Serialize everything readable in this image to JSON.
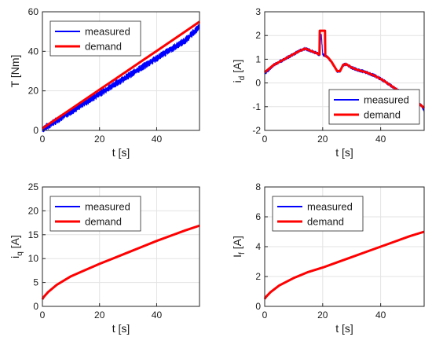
{
  "chart_data": [
    {
      "type": "line",
      "xlabel": "t [s]",
      "ylabel": "T [Nm]",
      "ylabel_sub": "",
      "xlim": [
        0,
        55
      ],
      "ylim": [
        0,
        60
      ],
      "xticks": [
        0,
        20,
        40
      ],
      "yticks": [
        0,
        20,
        40,
        60
      ],
      "grid": true,
      "legend_position": "top-left",
      "series": [
        {
          "name": "measured",
          "color": "#0000ff",
          "noise": 3.5,
          "x": [
            0,
            5,
            10,
            15,
            20,
            25,
            30,
            35,
            40,
            45,
            50,
            55
          ],
          "y": [
            0.5,
            5,
            9.5,
            14,
            18.5,
            23,
            27.5,
            32,
            36.5,
            41,
            45.5,
            52.5
          ]
        },
        {
          "name": "demand",
          "color": "#ff0000",
          "x": [
            0,
            5,
            10,
            15,
            20,
            25,
            30,
            35,
            40,
            45,
            50,
            55
          ],
          "y": [
            1,
            5.9,
            10.8,
            15.7,
            20.6,
            25.5,
            30.4,
            35.3,
            40.2,
            45.1,
            50,
            55
          ]
        }
      ]
    },
    {
      "type": "line",
      "xlabel": "t [s]",
      "ylabel": "i",
      "ylabel_sub": "d",
      "ylabel_unit": "[A]",
      "xlim": [
        0,
        55
      ],
      "ylim": [
        -2,
        3
      ],
      "xticks": [
        0,
        20,
        40
      ],
      "yticks": [
        -2,
        -1,
        0,
        1,
        2,
        3
      ],
      "grid": true,
      "legend_position": "bottom-right",
      "series": [
        {
          "name": "measured",
          "color": "#0000ff",
          "noise": 0.14,
          "x": [
            0,
            3,
            6,
            9,
            12,
            14,
            16,
            18,
            19,
            19.5,
            20,
            21,
            22,
            23,
            24,
            25,
            26,
            27,
            28,
            30,
            32,
            35,
            38,
            41,
            44,
            47,
            50,
            52,
            54,
            55
          ],
          "y": [
            0.4,
            0.75,
            0.95,
            1.15,
            1.35,
            1.45,
            1.35,
            1.25,
            1.2,
            2.1,
            1.2,
            1.15,
            1.05,
            0.9,
            0.7,
            0.5,
            0.5,
            0.75,
            0.8,
            0.65,
            0.55,
            0.45,
            0.3,
            0.1,
            -0.15,
            -0.4,
            -0.55,
            -0.75,
            -0.95,
            -1.15
          ]
        },
        {
          "name": "demand",
          "color": "#ff0000",
          "x": [
            0,
            3,
            6,
            9,
            12,
            14,
            16,
            18,
            18.9,
            19,
            20.8,
            20.9,
            22,
            23,
            24,
            25,
            26,
            27,
            28,
            30,
            32,
            35,
            38,
            41,
            44,
            47,
            50,
            52,
            54,
            55
          ],
          "y": [
            0.45,
            0.75,
            0.95,
            1.15,
            1.35,
            1.45,
            1.35,
            1.25,
            1.2,
            2.2,
            2.2,
            1.15,
            1.05,
            0.9,
            0.7,
            0.5,
            0.5,
            0.75,
            0.8,
            0.65,
            0.55,
            0.45,
            0.3,
            0.1,
            -0.15,
            -0.4,
            -0.55,
            -0.75,
            -0.95,
            -1.05
          ]
        }
      ]
    },
    {
      "type": "line",
      "xlabel": "t [s]",
      "ylabel": "i",
      "ylabel_sub": "q",
      "ylabel_unit": "[A]",
      "xlim": [
        0,
        55
      ],
      "ylim": [
        0,
        25
      ],
      "xticks": [
        0,
        20,
        40
      ],
      "yticks": [
        0,
        5,
        10,
        15,
        20,
        25
      ],
      "grid": true,
      "legend_position": "top-left",
      "series": [
        {
          "name": "measured",
          "color": "#0000ff",
          "noise": 0,
          "x": [
            0,
            0.5,
            2,
            5,
            10,
            15,
            20,
            25,
            30,
            35,
            40,
            45,
            50,
            55
          ],
          "y": [
            1.5,
            2,
            3,
            4.5,
            6.3,
            7.6,
            8.9,
            10.1,
            11.3,
            12.5,
            13.7,
            14.8,
            15.9,
            16.9
          ]
        },
        {
          "name": "demand",
          "color": "#ff0000",
          "x": [
            0,
            0.5,
            2,
            5,
            10,
            15,
            20,
            25,
            30,
            35,
            40,
            45,
            50,
            55
          ],
          "y": [
            1.5,
            2,
            3,
            4.5,
            6.3,
            7.6,
            8.9,
            10.1,
            11.3,
            12.5,
            13.7,
            14.8,
            15.9,
            16.9
          ]
        }
      ]
    },
    {
      "type": "line",
      "xlabel": "t [s]",
      "ylabel": "I",
      "ylabel_sub": "f",
      "ylabel_unit": "[A]",
      "xlim": [
        0,
        55
      ],
      "ylim": [
        0,
        8
      ],
      "xticks": [
        0,
        20,
        40
      ],
      "yticks": [
        0,
        2,
        4,
        6,
        8
      ],
      "grid": true,
      "legend_position": "top-left",
      "series": [
        {
          "name": "measured",
          "color": "#0000ff",
          "noise": 0,
          "x": [
            0,
            0.5,
            2,
            5,
            10,
            15,
            20,
            25,
            30,
            35,
            40,
            45,
            50,
            55
          ],
          "y": [
            0.5,
            0.65,
            0.95,
            1.4,
            1.9,
            2.3,
            2.6,
            2.95,
            3.3,
            3.65,
            4.0,
            4.35,
            4.7,
            5.0
          ]
        },
        {
          "name": "demand",
          "color": "#ff0000",
          "x": [
            0,
            0.5,
            2,
            5,
            10,
            15,
            20,
            25,
            30,
            35,
            40,
            45,
            50,
            55
          ],
          "y": [
            0.5,
            0.65,
            0.95,
            1.4,
            1.9,
            2.3,
            2.6,
            2.95,
            3.3,
            3.65,
            4.0,
            4.35,
            4.7,
            5.0
          ]
        }
      ]
    }
  ]
}
